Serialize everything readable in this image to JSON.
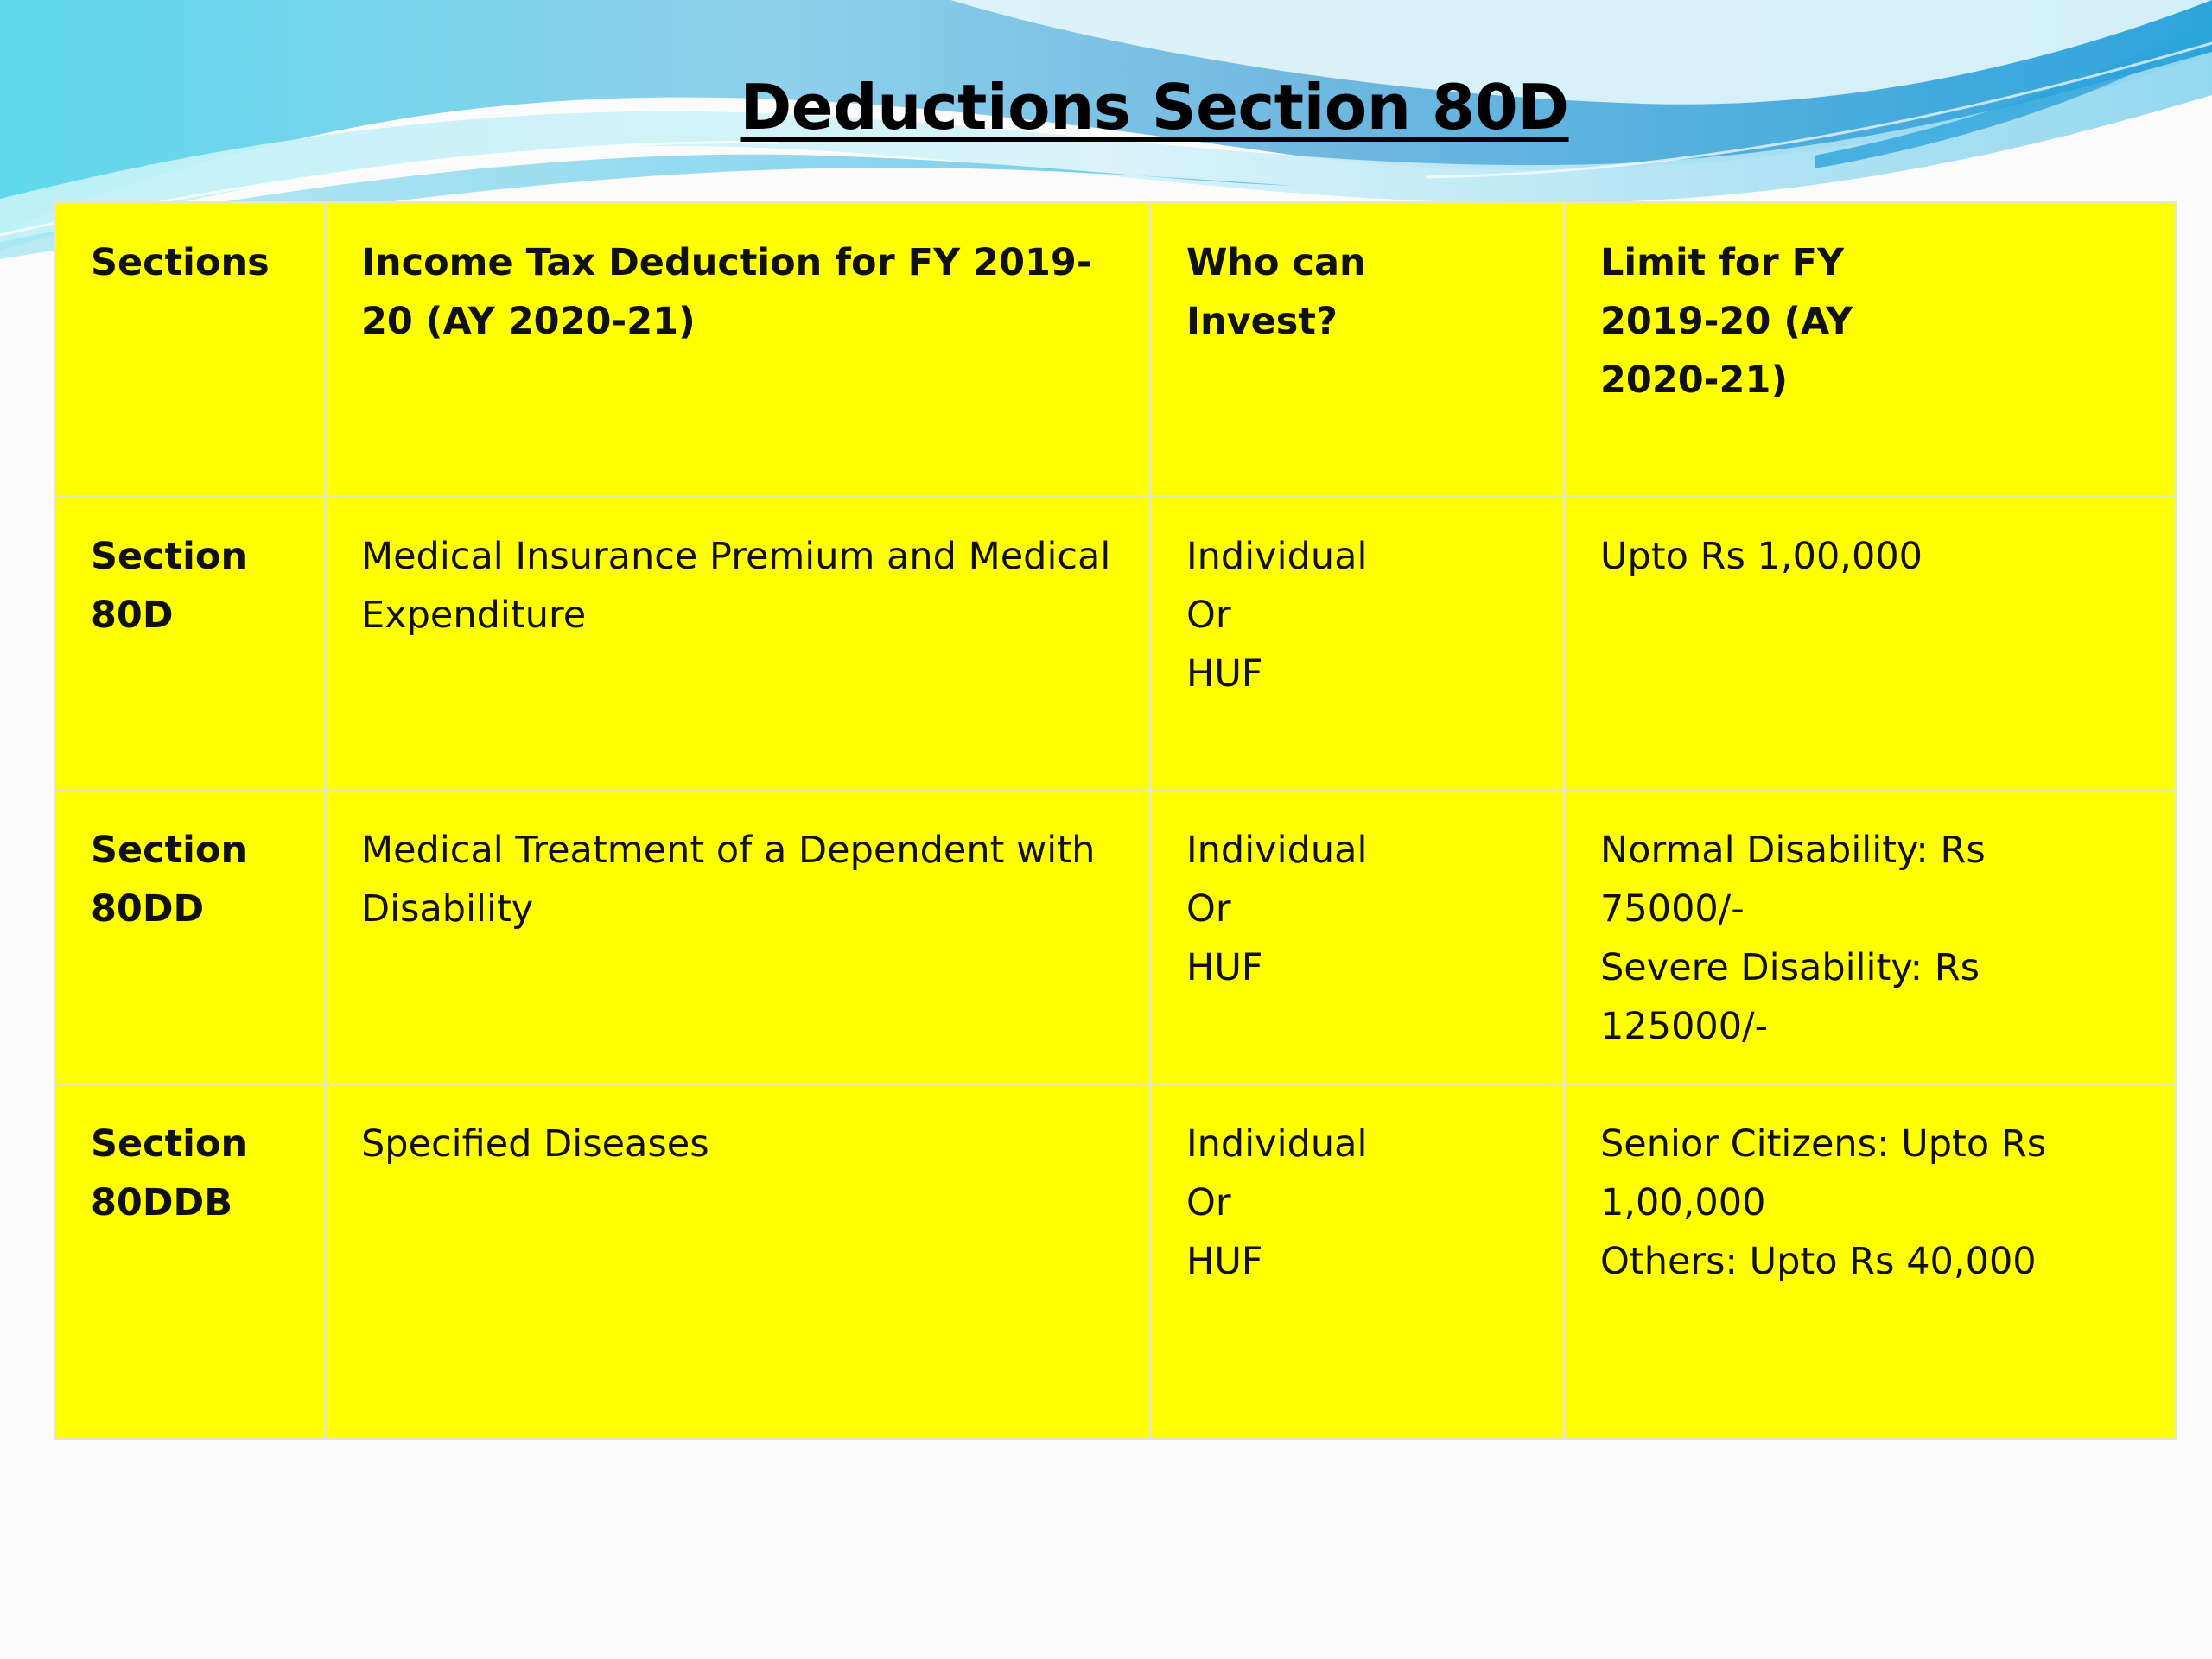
{
  "slide": {
    "title": "Deductions Section 80D"
  },
  "table": {
    "headers": [
      "Sections",
      "Income Tax Deduction for FY 2019-20 (AY 2020-21)",
      "Who can Invest?",
      [
        "Limit for FY",
        "2019-20 (AY",
        "2020-21)"
      ]
    ],
    "rows": [
      {
        "section": [
          "Section",
          "80D"
        ],
        "deduction": "Medical Insurance Premium and Medical Expenditure",
        "who": [
          "Individual",
          "Or",
          "HUF"
        ],
        "limit": [
          "Upto Rs 1,00,000"
        ]
      },
      {
        "section": [
          "Section",
          "80DD"
        ],
        "deduction": "Medical Treatment of a Dependent with Disability",
        "who": [
          "Individual",
          "Or",
          "HUF"
        ],
        "limit": [
          "Normal Disability: Rs 75000/-",
          "Severe Disability: Rs 125000/-"
        ]
      },
      {
        "section": [
          "Section",
          "80DDB"
        ],
        "deduction": "Specified Diseases",
        "who": [
          "Individual",
          "Or",
          "HUF"
        ],
        "limit": [
          "Senior Citizens: Upto Rs",
          "1,00,000",
          "Others: Upto Rs 40,000"
        ]
      }
    ]
  },
  "colors": {
    "table_fill": "#ffff00",
    "wave_light": "#bfeef5",
    "wave_mid": "#5fd0e8",
    "wave_dark": "#1aa8d8"
  }
}
